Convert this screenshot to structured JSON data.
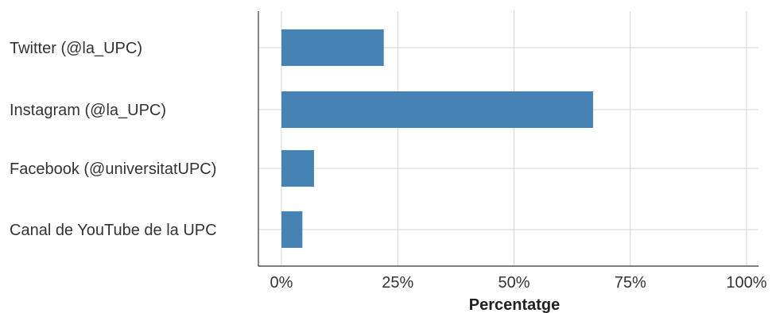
{
  "chart_data": {
    "type": "bar",
    "orientation": "horizontal",
    "categories": [
      "Twitter (@la_UPC)",
      "Instagram (@la_UPC)",
      "Facebook (@universitatUPC)",
      "Canal de YouTube de la UPC"
    ],
    "values": [
      0.22,
      0.67,
      0.07,
      0.045
    ],
    "xlabel": "Percentatge",
    "ylabel": "",
    "xlim": [
      0,
      1
    ],
    "x_ticks": [
      0,
      0.25,
      0.5,
      0.75,
      1
    ],
    "x_tick_labels": [
      "0%",
      "25%",
      "50%",
      "75%",
      "100%"
    ],
    "grid": true,
    "colors": {
      "bar": "#4682b4",
      "grid": "#d4d4d4",
      "axis": "#333333"
    }
  }
}
